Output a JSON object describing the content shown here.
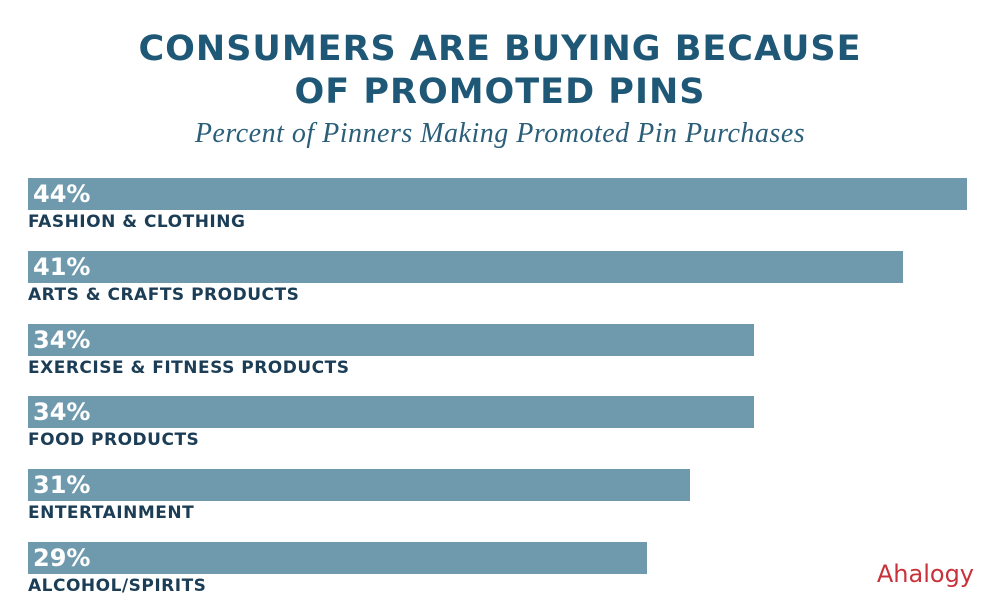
{
  "chart_data": {
    "type": "bar",
    "orientation": "horizontal",
    "title": "CONSUMERS ARE BUYING BECAUSE\nOF PROMOTED PINS",
    "subtitle": "Percent of Pinners Making Promoted Pin Purchases",
    "categories": [
      "FASHION & CLOTHING",
      "ARTS & CRAFTS PRODUCTS",
      "EXERCISE & FITNESS PRODUCTS",
      "FOOD PRODUCTS",
      "ENTERTAINMENT",
      "ALCOHOL/SPIRITS"
    ],
    "values": [
      44,
      41,
      34,
      34,
      31,
      29
    ],
    "value_labels": [
      "44%",
      "41%",
      "34%",
      "34%",
      "31%",
      "29%"
    ],
    "color": "#6f9aae",
    "logo": "Ahalogy"
  }
}
